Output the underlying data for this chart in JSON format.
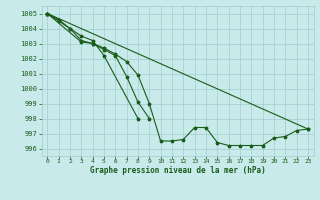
{
  "title": "Graphe pression niveau de la mer (hPa)",
  "background_color": "#c8eaea",
  "grid_color": "#a0cccc",
  "line_color": "#1a5c1a",
  "xlim": [
    -0.5,
    23.5
  ],
  "ylim": [
    995.5,
    1005.5
  ],
  "yticks": [
    996,
    997,
    998,
    999,
    1000,
    1001,
    1002,
    1003,
    1004,
    1005
  ],
  "xticks": [
    0,
    1,
    2,
    3,
    4,
    5,
    6,
    7,
    8,
    9,
    10,
    11,
    12,
    13,
    14,
    15,
    16,
    17,
    18,
    19,
    20,
    21,
    22,
    23
  ],
  "series1_x": [
    0,
    1,
    2,
    3,
    4,
    5,
    6,
    7,
    8,
    9,
    10,
    11,
    12,
    13,
    14,
    15,
    16,
    17,
    18,
    19,
    20,
    21,
    22,
    23
  ],
  "series1_y": [
    1005.0,
    1004.6,
    1004.0,
    1003.2,
    1003.0,
    1002.7,
    1002.3,
    1001.8,
    1000.9,
    999.0,
    996.5,
    996.5,
    996.6,
    997.4,
    997.4,
    996.4,
    996.2,
    996.2,
    996.2,
    996.2,
    996.7,
    996.8,
    997.2,
    997.3
  ],
  "series2_x": [
    0,
    1,
    2,
    3,
    4,
    5,
    8
  ],
  "series2_y": [
    1005.0,
    1004.5,
    1004.0,
    1003.5,
    1003.2,
    1002.2,
    998.0
  ],
  "series3_x": [
    0,
    3,
    4,
    5,
    6,
    7,
    8,
    9
  ],
  "series3_y": [
    1005.0,
    1003.1,
    1003.0,
    1002.6,
    1002.2,
    1000.8,
    999.1,
    998.0
  ],
  "series4_x": [
    0,
    23
  ],
  "series4_y": [
    1005.0,
    997.3
  ]
}
